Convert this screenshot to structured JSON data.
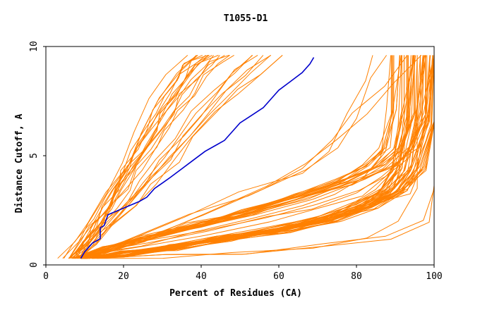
{
  "chart_data": {
    "type": "line",
    "title": "T1055-D1",
    "xlabel": "Percent of Residues (CA)",
    "ylabel": "Distance Cutoff, A",
    "xlim": [
      0,
      100
    ],
    "ylim": [
      0,
      10
    ],
    "x_ticks": [
      0,
      20,
      40,
      60,
      80,
      100
    ],
    "y_ticks": [
      0,
      5,
      10
    ],
    "grid": false,
    "legend": "none",
    "colors": {
      "highlight": "#0000cc",
      "others": "#ff8000",
      "axes": "#000000"
    },
    "highlight_series": {
      "x": [
        9,
        10,
        11,
        12,
        13,
        14,
        14,
        15,
        16,
        18,
        20,
        22,
        24,
        26,
        28,
        30,
        32,
        35,
        38,
        41,
        44,
        46,
        48,
        50,
        53,
        56,
        58,
        60,
        63,
        66,
        68,
        69
      ],
      "y": [
        0.3,
        0.6,
        0.8,
        1.0,
        1.1,
        1.2,
        1.7,
        1.8,
        2.3,
        2.45,
        2.6,
        2.75,
        2.9,
        3.1,
        3.5,
        3.75,
        4.0,
        4.4,
        4.8,
        5.2,
        5.5,
        5.7,
        6.1,
        6.5,
        6.85,
        7.2,
        7.6,
        8.0,
        8.4,
        8.8,
        9.2,
        9.5
      ]
    },
    "other_series_groups": [
      {
        "count": 3,
        "x": [
          4,
          7,
          10,
          14,
          18,
          22,
          26,
          30,
          34
        ],
        "y": [
          0.3,
          1.0,
          2.0,
          3.2,
          4.6,
          6.0,
          7.6,
          8.8,
          9.6
        ]
      },
      {
        "count": 14,
        "x": [
          7,
          10,
          13,
          16,
          19,
          22,
          25,
          28,
          31,
          34,
          37,
          40,
          44
        ],
        "y": [
          0.3,
          1.0,
          1.8,
          2.6,
          3.5,
          4.4,
          5.3,
          6.2,
          7.0,
          7.8,
          8.6,
          9.2,
          9.6
        ]
      },
      {
        "count": 8,
        "x": [
          8,
          12,
          16,
          21,
          26,
          31,
          36,
          41,
          46,
          51,
          56
        ],
        "y": [
          0.3,
          1.0,
          1.9,
          2.8,
          3.8,
          4.8,
          5.8,
          6.9,
          7.9,
          8.8,
          9.6
        ]
      },
      {
        "count": 2,
        "x": [
          10,
          20,
          35,
          50,
          65,
          72,
          76,
          80,
          82
        ],
        "y": [
          0.3,
          1.0,
          2.2,
          3.2,
          4.2,
          5.3,
          6.8,
          8.5,
          9.6
        ]
      },
      {
        "count": 2,
        "x": [
          10,
          25,
          40,
          55,
          65,
          72,
          78,
          84,
          90
        ],
        "y": [
          0.3,
          1.2,
          2.4,
          3.5,
          4.5,
          5.6,
          6.9,
          8.3,
          9.6
        ]
      },
      {
        "count": 4,
        "x": [
          8,
          15,
          25,
          40,
          55,
          68,
          78,
          85,
          90,
          94,
          96
        ],
        "y": [
          0.3,
          0.6,
          1.0,
          1.5,
          2.1,
          2.7,
          3.3,
          4.0,
          5.0,
          7.0,
          9.6
        ]
      },
      {
        "count": 20,
        "x": [
          8,
          15,
          25,
          38,
          52,
          66,
          78,
          86,
          91,
          94,
          95
        ],
        "y": [
          0.3,
          0.7,
          1.2,
          1.8,
          2.4,
          3.1,
          3.8,
          4.5,
          5.3,
          7.0,
          9.6
        ]
      },
      {
        "count": 38,
        "x": [
          10,
          20,
          32,
          46,
          60,
          72,
          82,
          89,
          93,
          96,
          97
        ],
        "y": [
          0.3,
          0.5,
          0.8,
          1.2,
          1.6,
          2.1,
          2.7,
          3.4,
          4.4,
          6.5,
          9.6
        ]
      },
      {
        "count": 3,
        "x": [
          12,
          30,
          50,
          70,
          85,
          94,
          98,
          99,
          100
        ],
        "y": [
          0.3,
          0.4,
          0.6,
          0.9,
          1.3,
          2.0,
          3.5,
          6.5,
          9.6
        ]
      }
    ]
  }
}
